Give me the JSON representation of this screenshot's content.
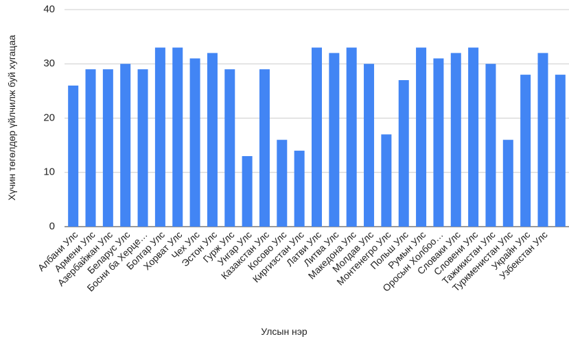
{
  "chart_data": {
    "type": "bar",
    "x_label": "Улсын нэр",
    "y_label": "Хүчин төгөлдөр үйлчилж буй хугацаа",
    "categories": [
      "Албани Улс",
      "Армени Улс",
      "Азербайжан Улс",
      "Беларус Улс",
      "Босни ба Херце…",
      "Болгар Улс",
      "Хорват Улс",
      "Чех Улс",
      "Эстон Улс",
      "Гурж Улс",
      "Унгар Улс",
      "Казакстан Улс",
      "Косово Улс",
      "Киргизстан Улс",
      "Латви Улс",
      "Литва Улс",
      "Македона Улс",
      "Молдав Улс",
      "Монтенегро Улс",
      "Польш Улс",
      "Румын Улс",
      "Оросын Холбоо…",
      "Словаки Улс",
      "Словени Улс",
      "Тажикистан Улс",
      "Туркменистан Улс",
      "Украйн Улс",
      "Узбекстан Улс",
      null
    ],
    "values": [
      26,
      29,
      29,
      30,
      29,
      33,
      33,
      31,
      32,
      29,
      13,
      29,
      16,
      14,
      33,
      32,
      33,
      30,
      17,
      27,
      33,
      31,
      32,
      33,
      30,
      16,
      28,
      32,
      28
    ],
    "color": "#4285f4",
    "ylim": [
      0,
      40
    ],
    "yticks": [
      0,
      10,
      20,
      30,
      40
    ],
    "grid": true
  }
}
